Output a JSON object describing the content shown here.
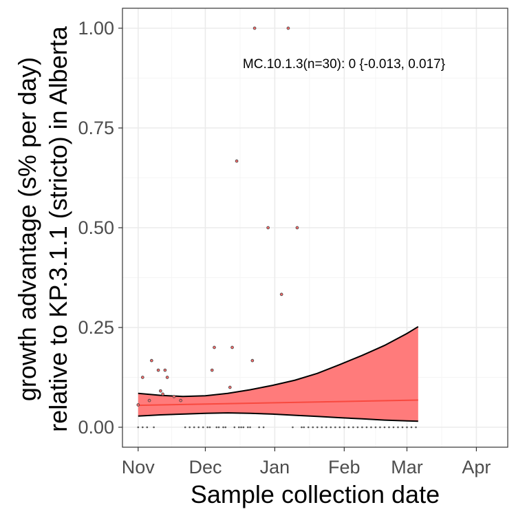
{
  "chart_data": {
    "type": "scatter",
    "title": "",
    "xlabel": "Sample collection date",
    "ylabel_line1": "growth advantage (s% per day)",
    "ylabel_line2": "relative to KP.3.1.1 (stricto) in Alberta",
    "annotation": "MC.10.1.3(n=30): 0 {-0.013, 0.017}",
    "x_tick_labels": [
      {
        "date": "2024-11-01",
        "label": "Nov"
      },
      {
        "date": "2024-12-01",
        "label": "Dec"
      },
      {
        "date": "2025-01-01",
        "label": "Jan"
      },
      {
        "date": "2025-02-01",
        "label": "Feb"
      },
      {
        "date": "2025-03-01",
        "label": "Mar"
      },
      {
        "date": "2025-04-01",
        "label": "Apr"
      }
    ],
    "xlim": [
      "2024-10-25",
      "2025-04-15"
    ],
    "y_ticks": [
      0,
      0.25,
      0.5,
      0.75,
      1.0
    ],
    "y_tick_labels": [
      "0.00",
      "0.25",
      "0.50",
      "0.75",
      "1.00"
    ],
    "ylim": [
      -0.05,
      1.05
    ],
    "grid": true,
    "colors": {
      "ribbon": "#ff7b7b",
      "fit_line": "#f8493f",
      "bounds": "#000000",
      "points_edge": "#4a4a4a",
      "points_fill": "#ff6b6b",
      "panel_border": "#333333",
      "grid_major": "#ebebeb",
      "grid_minor": "#f5f5f5"
    },
    "fit": {
      "dates": [
        "2024-11-01",
        "2025-03-06"
      ],
      "values": [
        0.055,
        0.068
      ]
    },
    "band": {
      "dates": [
        "2024-11-01",
        "2024-11-11",
        "2024-11-21",
        "2024-12-01",
        "2024-12-11",
        "2024-12-21",
        "2024-12-31",
        "2025-01-10",
        "2025-01-20",
        "2025-01-30",
        "2025-02-09",
        "2025-02-19",
        "2025-03-01",
        "2025-03-06"
      ],
      "upper": [
        0.085,
        0.08,
        0.077,
        0.079,
        0.085,
        0.094,
        0.105,
        0.118,
        0.135,
        0.157,
        0.18,
        0.205,
        0.235,
        0.252
      ],
      "lower": [
        0.028,
        0.031,
        0.033,
        0.035,
        0.036,
        0.035,
        0.033,
        0.03,
        0.027,
        0.024,
        0.021,
        0.018,
        0.016,
        0.015
      ]
    },
    "points": [
      {
        "date": "2024-11-03",
        "value": 0.125
      },
      {
        "date": "2024-11-06",
        "value": 0.067
      },
      {
        "date": "2024-11-07",
        "value": 0.167
      },
      {
        "date": "2024-11-10",
        "value": 0.143
      },
      {
        "date": "2024-11-11",
        "value": 0.091
      },
      {
        "date": "2024-11-12",
        "value": 0.083
      },
      {
        "date": "2024-11-13",
        "value": 0.143
      },
      {
        "date": "2024-11-14",
        "value": 0.125
      },
      {
        "date": "2024-11-17",
        "value": 0.077
      },
      {
        "date": "2024-11-20",
        "value": 0.067
      },
      {
        "date": "2024-11-01",
        "value": 0.056
      },
      {
        "date": "2024-12-04",
        "value": 0.143
      },
      {
        "date": "2024-12-05",
        "value": 0.2
      },
      {
        "date": "2024-12-12",
        "value": 0.1
      },
      {
        "date": "2024-12-13",
        "value": 0.2
      },
      {
        "date": "2024-12-15",
        "value": 0.667
      },
      {
        "date": "2024-12-22",
        "value": 0.167
      },
      {
        "date": "2024-12-23",
        "value": 1.0
      },
      {
        "date": "2024-12-29",
        "value": 0.5
      },
      {
        "date": "2025-01-04",
        "value": 0.333
      },
      {
        "date": "2025-01-07",
        "value": 1.0
      },
      {
        "date": "2025-01-11",
        "value": 0.5
      }
    ],
    "zero_points": {
      "dates": [
        "2024-11-01",
        "2024-11-03",
        "2024-11-05",
        "2024-11-08",
        "2024-11-22",
        "2024-11-24",
        "2024-11-26",
        "2024-11-28",
        "2024-11-30",
        "2024-12-02",
        "2024-12-03",
        "2024-12-06",
        "2024-12-07",
        "2024-12-09",
        "2024-12-10",
        "2024-12-14",
        "2024-12-16",
        "2024-12-17",
        "2024-12-18",
        "2024-12-20",
        "2024-12-21",
        "2024-12-25",
        "2024-12-27",
        "2025-01-09",
        "2025-01-13",
        "2025-01-14",
        "2025-01-16",
        "2025-01-18",
        "2025-01-20",
        "2025-01-22",
        "2025-01-24",
        "2025-01-26",
        "2025-01-28",
        "2025-01-30",
        "2025-02-01",
        "2025-02-03",
        "2025-02-05",
        "2025-02-07",
        "2025-02-09",
        "2025-02-11",
        "2025-02-13",
        "2025-02-15",
        "2025-02-17",
        "2025-02-19",
        "2025-02-21",
        "2025-02-23",
        "2025-02-25",
        "2025-02-27",
        "2025-03-01",
        "2025-03-03",
        "2025-03-05"
      ],
      "value": 0
    }
  }
}
